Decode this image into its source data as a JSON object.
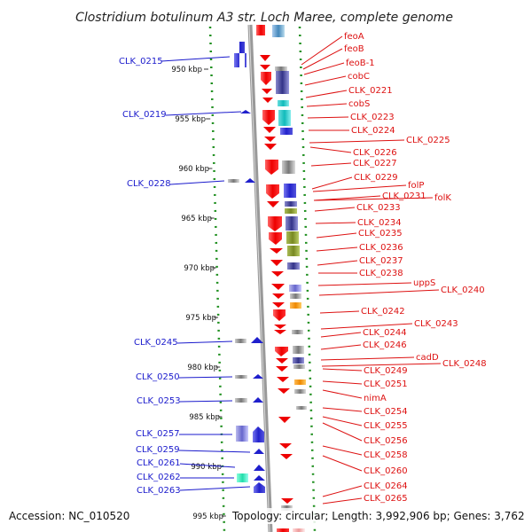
{
  "title": "Clostridium botulinum A3 str. Loch Maree, complete genome",
  "accession": "Accession: NC_010520",
  "topology": "Topology: circular; Length: 3,992,906 bp; Genes: 3,762",
  "colors": {
    "left_label": "#1a1acc",
    "right_label": "#dd1111",
    "backbone": "#9a9a9a",
    "tick_dots": "#1f8f1f"
  },
  "kbp_ticks": [
    "950 kbp",
    "955 kbp",
    "960 kbp",
    "965 kbp",
    "970 kbp",
    "975 kbp",
    "980 kbp",
    "985 kbp",
    "990 kbp",
    "995 kbp"
  ],
  "left_labels": [
    "CLK_0215",
    "CLK_0219",
    "CLK_0228",
    "CLK_0245",
    "CLK_0250",
    "CLK_0253",
    "CLK_0257",
    "CLK_0259",
    "CLK_0261",
    "CLK_0262",
    "CLK_0263"
  ],
  "right_labels": [
    "feoA",
    "feoB",
    "feoB-1",
    "cobC",
    "CLK_0221",
    "cobS",
    "CLK_0223",
    "CLK_0224",
    "CLK_0225",
    "CLK_0226",
    "CLK_0227",
    "CLK_0229",
    "folP",
    "CLK_0231",
    "folK",
    "CLK_0233",
    "CLK_0234",
    "CLK_0235",
    "CLK_0236",
    "CLK_0237",
    "CLK_0238",
    "uppS",
    "CLK_0240",
    "CLK_0242",
    "CLK_0243",
    "CLK_0244",
    "CLK_0246",
    "cadD",
    "CLK_0248",
    "CLK_0249",
    "CLK_0251",
    "nimA",
    "CLK_0254",
    "CLK_0255",
    "CLK_0256",
    "CLK_0258",
    "CLK_0260",
    "CLK_0264",
    "CLK_0265"
  ]
}
